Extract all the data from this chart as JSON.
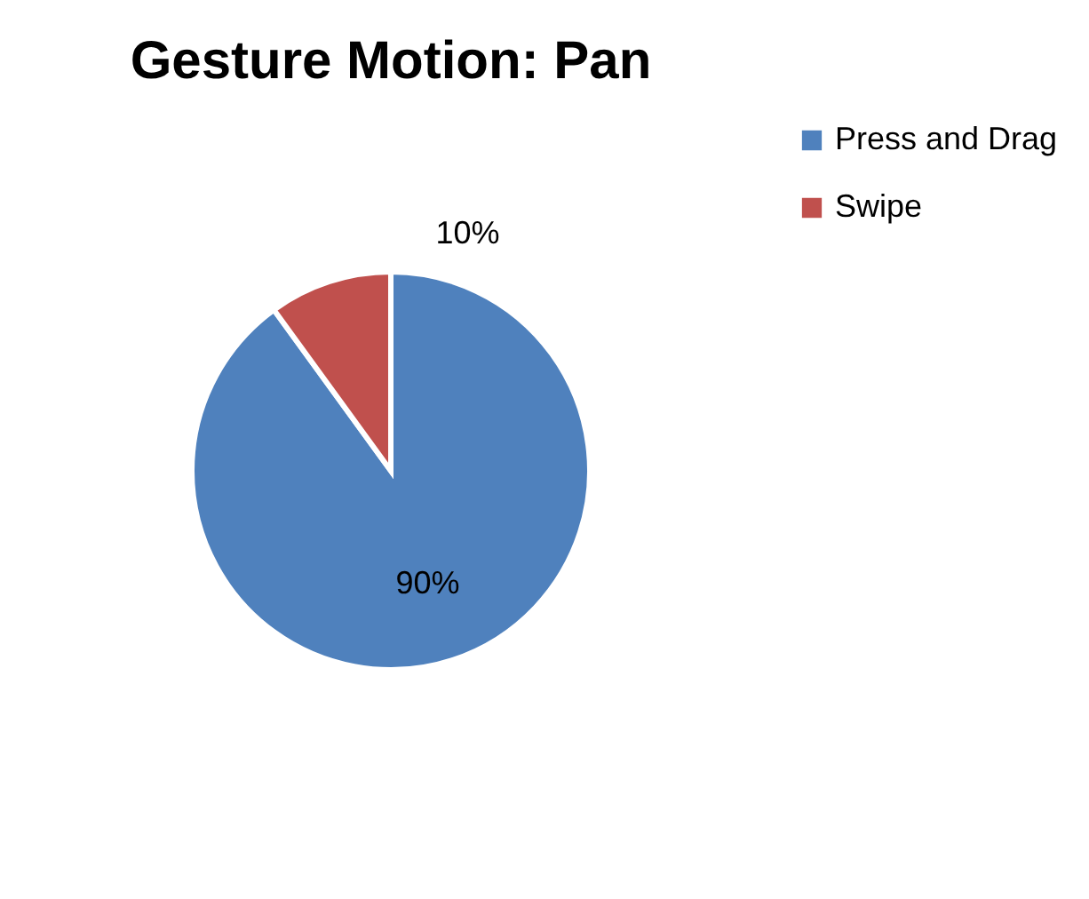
{
  "chart_data": {
    "type": "pie",
    "title": "Gesture Motion: Pan",
    "categories": [
      "Press and Drag",
      "Swipe"
    ],
    "values": [
      90,
      10
    ],
    "colors": [
      "#4f81bd",
      "#c0504d"
    ],
    "value_labels": [
      "90%",
      "10%"
    ],
    "legend": "right"
  }
}
